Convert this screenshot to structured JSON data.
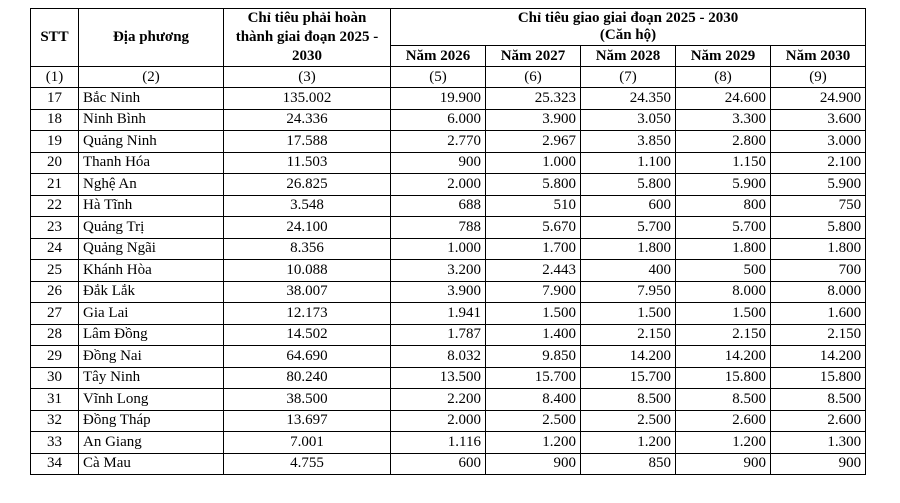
{
  "table": {
    "header": {
      "stt": "STT",
      "dia_phuong": "Địa phương",
      "target_total": "Chỉ tiêu phải hoàn thành giai đoạn 2025 - 2030",
      "assigned_group_line1": "Chỉ tiêu giao giai đoạn 2025 - 2030",
      "assigned_group_line2": "(Căn hộ)",
      "years": [
        "Năm 2026",
        "Năm 2027",
        "Năm 2028",
        "Năm 2029",
        "Năm 2030"
      ],
      "col_indices": [
        "(1)",
        "(2)",
        "(3)",
        "(5)",
        "(6)",
        "(7)",
        "(8)",
        "(9)"
      ]
    },
    "rows": [
      [
        "17",
        "Bắc Ninh",
        "135.002",
        "19.900",
        "25.323",
        "24.350",
        "24.600",
        "24.900"
      ],
      [
        "18",
        "Ninh Bình",
        "24.336",
        "6.000",
        "3.900",
        "3.050",
        "3.300",
        "3.600"
      ],
      [
        "19",
        "Quảng Ninh",
        "17.588",
        "2.770",
        "2.967",
        "3.850",
        "2.800",
        "3.000"
      ],
      [
        "20",
        "Thanh Hóa",
        "11.503",
        "900",
        "1.000",
        "1.100",
        "1.150",
        "2.100"
      ],
      [
        "21",
        "Nghệ An",
        "26.825",
        "2.000",
        "5.800",
        "5.800",
        "5.900",
        "5.900"
      ],
      [
        "22",
        "Hà Tĩnh",
        "3.548",
        "688",
        "510",
        "600",
        "800",
        "750"
      ],
      [
        "23",
        "Quảng Trị",
        "24.100",
        "788",
        "5.670",
        "5.700",
        "5.700",
        "5.800"
      ],
      [
        "24",
        "Quảng Ngãi",
        "8.356",
        "1.000",
        "1.700",
        "1.800",
        "1.800",
        "1.800"
      ],
      [
        "25",
        "Khánh Hòa",
        "10.088",
        "3.200",
        "2.443",
        "400",
        "500",
        "700"
      ],
      [
        "26",
        "Đắk Lắk",
        "38.007",
        "3.900",
        "7.900",
        "7.950",
        "8.000",
        "8.000"
      ],
      [
        "27",
        "Gia Lai",
        "12.173",
        "1.941",
        "1.500",
        "1.500",
        "1.500",
        "1.600"
      ],
      [
        "28",
        "Lâm Đồng",
        "14.502",
        "1.787",
        "1.400",
        "2.150",
        "2.150",
        "2.150"
      ],
      [
        "29",
        "Đồng Nai",
        "64.690",
        "8.032",
        "9.850",
        "14.200",
        "14.200",
        "14.200"
      ],
      [
        "30",
        "Tây Ninh",
        "80.240",
        "13.500",
        "15.700",
        "15.700",
        "15.800",
        "15.800"
      ],
      [
        "31",
        "Vĩnh Long",
        "38.500",
        "2.200",
        "8.400",
        "8.500",
        "8.500",
        "8.500"
      ],
      [
        "32",
        "Đồng Tháp",
        "13.697",
        "2.000",
        "2.500",
        "2.500",
        "2.600",
        "2.600"
      ],
      [
        "33",
        "An Giang",
        "7.001",
        "1.116",
        "1.200",
        "1.200",
        "1.200",
        "1.300"
      ],
      [
        "34",
        "Cà Mau",
        "4.755",
        "600",
        "900",
        "850",
        "900",
        "900"
      ]
    ]
  }
}
